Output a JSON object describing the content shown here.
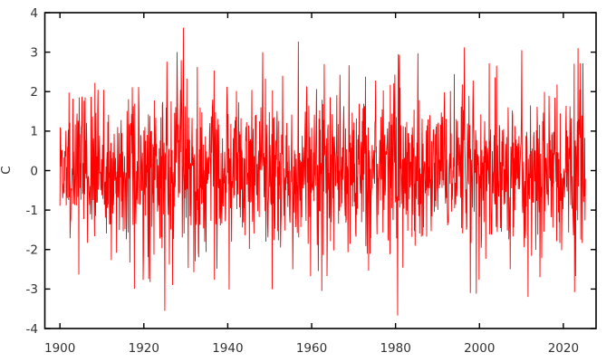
{
  "figure": {
    "background": "#ffffff",
    "border_color": "#000000",
    "tick_color": "#000000",
    "label_color": "#333333"
  },
  "chart_data": {
    "type": "line",
    "title": "",
    "xlabel": "",
    "ylabel": "C",
    "xlim": [
      1896.4,
      2027.8
    ],
    "ylim": [
      -4,
      4
    ],
    "x_ticks": [
      1900,
      1920,
      1940,
      1960,
      1980,
      2000,
      2020
    ],
    "y_ticks": [
      -4,
      -3,
      -2,
      -1,
      0,
      1,
      2,
      3,
      4
    ],
    "grid": false,
    "legend_position": "none",
    "ticks_mirrored": true,
    "tick_direction": "in",
    "series": [
      {
        "name": "C",
        "color": "#ff0000",
        "line_width": 0.9,
        "x_start": 1900.0,
        "x_end": 2025.25,
        "points": 1504,
        "distribution": "gaussian",
        "mean": 0,
        "std": 1.05,
        "seed": 1903,
        "clamp": 3.3,
        "extremes": [
          {
            "x": 1925.0,
            "y": -3.55
          },
          {
            "x": 1926.8,
            "y": -2.9
          },
          {
            "x": 1929.4,
            "y": 3.62
          },
          {
            "x": 1948.3,
            "y": 3.0
          },
          {
            "x": 1956.8,
            "y": 3.27
          },
          {
            "x": 1962.4,
            "y": -3.05
          },
          {
            "x": 1980.5,
            "y": -3.67
          },
          {
            "x": 1980.9,
            "y": 2.93
          },
          {
            "x": 1985.3,
            "y": 2.97
          },
          {
            "x": 1996.4,
            "y": 3.12
          },
          {
            "x": 1997.8,
            "y": -3.1
          },
          {
            "x": 2010.1,
            "y": 3.05
          },
          {
            "x": 2011.6,
            "y": -3.2
          },
          {
            "x": 2023.5,
            "y": 3.1
          }
        ]
      }
    ]
  }
}
